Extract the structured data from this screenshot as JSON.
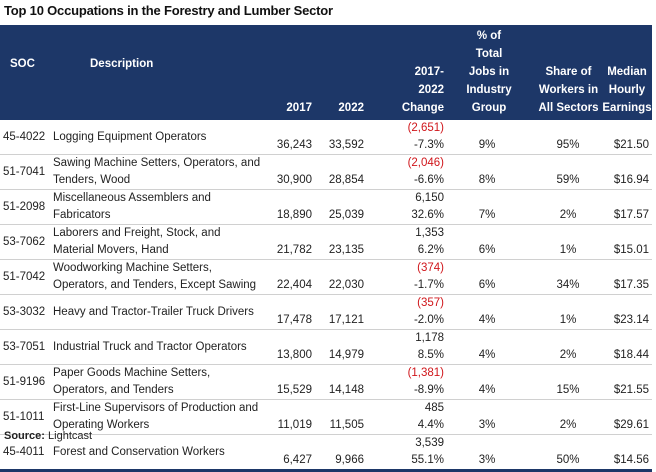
{
  "title": "Top 10 Occupations in the Forestry and Lumber Sector",
  "headers": {
    "soc": "SOC",
    "description": "Description",
    "y2017": "2017",
    "y2022": "2022",
    "change": "2017-2022 Change",
    "pct_total": "% of Total Jobs in Industry Group",
    "share": "Share of Workers in All Sectors",
    "median": "Median Hourly Earnings"
  },
  "rows": [
    {
      "soc": "45-4022",
      "description": "Logging Equipment Operators",
      "y2017": "36,243",
      "y2022": "33,592",
      "change": "(2,651)",
      "change_pct": "-7.3%",
      "negative": true,
      "pct_total": "9%",
      "share": "95%",
      "median": "$21.50"
    },
    {
      "soc": "51-7041",
      "description": "Sawing Machine Setters, Operators, and Tenders, Wood",
      "y2017": "30,900",
      "y2022": "28,854",
      "change": "(2,046)",
      "change_pct": "-6.6%",
      "negative": true,
      "pct_total": "8%",
      "share": "59%",
      "median": "$16.94"
    },
    {
      "soc": "51-2098",
      "description": "Miscellaneous Assemblers and Fabricators",
      "y2017": "18,890",
      "y2022": "25,039",
      "change": "6,150",
      "change_pct": "32.6%",
      "negative": false,
      "pct_total": "7%",
      "share": "2%",
      "median": "$17.57"
    },
    {
      "soc": "53-7062",
      "description": "Laborers and Freight, Stock, and Material Movers, Hand",
      "y2017": "21,782",
      "y2022": "23,135",
      "change": "1,353",
      "change_pct": "6.2%",
      "negative": false,
      "pct_total": "6%",
      "share": "1%",
      "median": "$15.01"
    },
    {
      "soc": "51-7042",
      "description": "Woodworking Machine Setters, Operators, and Tenders, Except Sawing",
      "y2017": "22,404",
      "y2022": "22,030",
      "change": "(374)",
      "change_pct": "-1.7%",
      "negative": true,
      "pct_total": "6%",
      "share": "34%",
      "median": "$17.35"
    },
    {
      "soc": "53-3032",
      "description": "Heavy and Tractor-Trailer Truck Drivers",
      "y2017": "17,478",
      "y2022": "17,121",
      "change": "(357)",
      "change_pct": "-2.0%",
      "negative": true,
      "pct_total": "4%",
      "share": "1%",
      "median": "$23.14"
    },
    {
      "soc": "53-7051",
      "description": "Industrial Truck and Tractor Operators",
      "y2017": "13,800",
      "y2022": "14,979",
      "change": "1,178",
      "change_pct": "8.5%",
      "negative": false,
      "pct_total": "4%",
      "share": "2%",
      "median": "$18.44"
    },
    {
      "soc": "51-9196",
      "description": "Paper Goods Machine Setters, Operators, and Tenders",
      "y2017": "15,529",
      "y2022": "14,148",
      "change": "(1,381)",
      "change_pct": "-8.9%",
      "negative": true,
      "pct_total": "4%",
      "share": "15%",
      "median": "$21.55"
    },
    {
      "soc": "51-1011",
      "description": "First-Line Supervisors of Production and Operating Workers",
      "y2017": "11,019",
      "y2022": "11,505",
      "change": "485",
      "change_pct": "4.4%",
      "negative": false,
      "pct_total": "3%",
      "share": "2%",
      "median": "$29.61"
    },
    {
      "soc": "45-4011",
      "description": "Forest and Conservation Workers",
      "y2017": "6,427",
      "y2022": "9,966",
      "change": "3,539",
      "change_pct": "55.1%",
      "negative": false,
      "pct_total": "3%",
      "share": "50%",
      "median": "$14.56"
    }
  ],
  "source_label": "Source:",
  "source_value": "Lightcast",
  "colors": {
    "header_bg": "#1d3768",
    "negative": "#d0161b"
  }
}
